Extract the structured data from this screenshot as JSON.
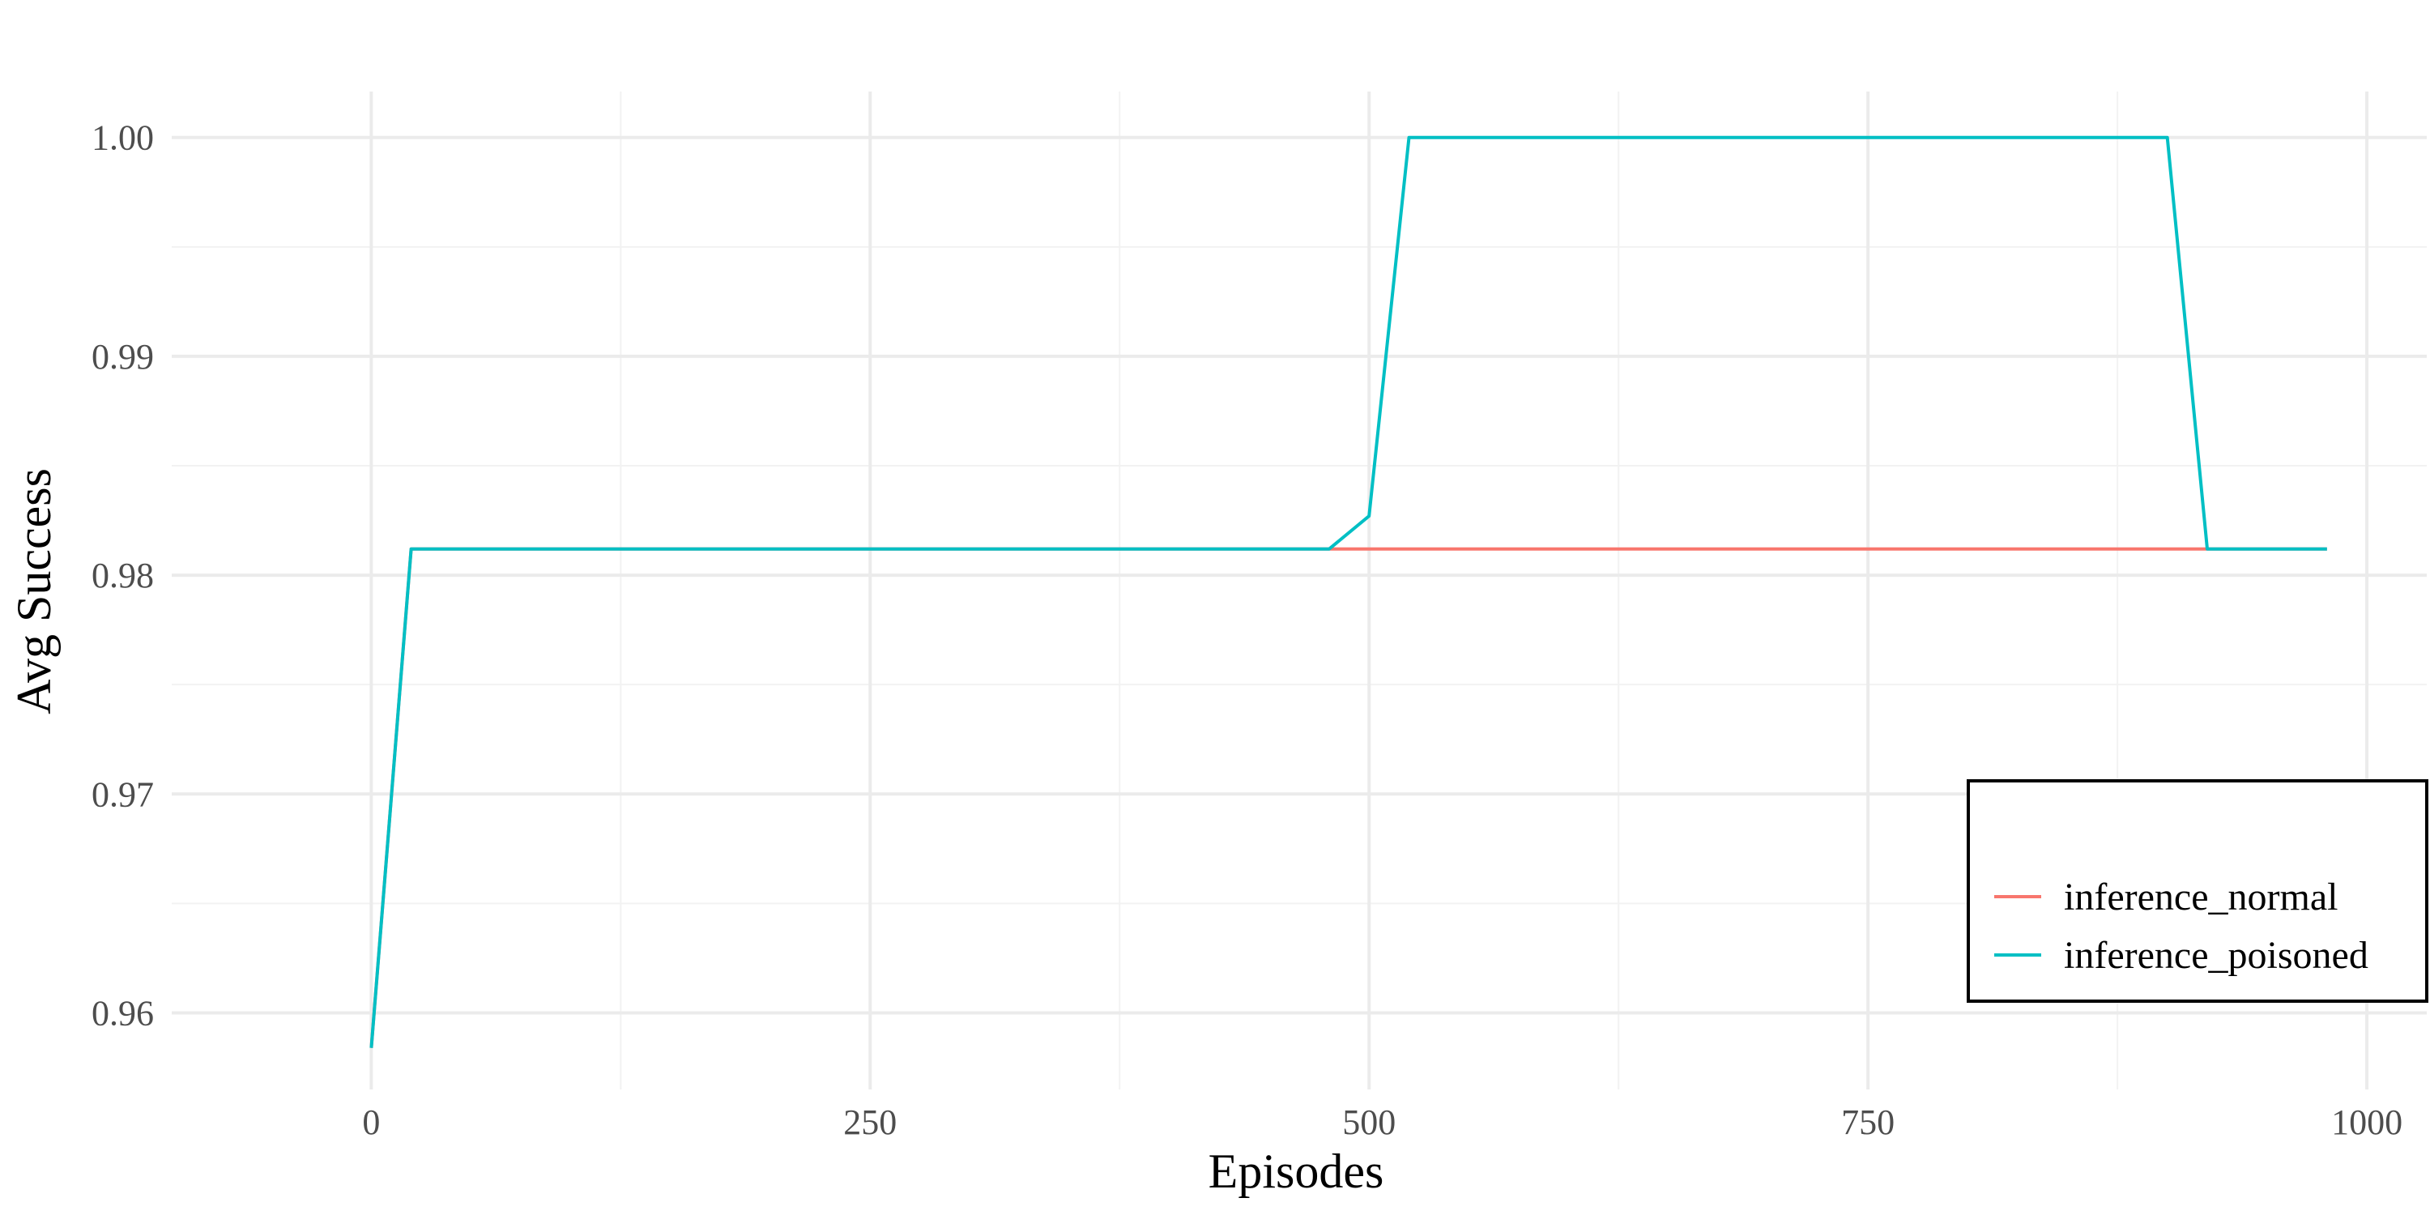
{
  "chart_data": {
    "type": "line",
    "title": "",
    "xlabel": "Episodes",
    "ylabel": "Avg Success",
    "xlim": [
      -100,
      1030
    ],
    "ylim": [
      0.9565,
      1.0021
    ],
    "x_ticks": [
      0,
      250,
      500,
      750,
      1000
    ],
    "x_tick_labels": [
      "0",
      "250",
      "500",
      "750",
      "1000"
    ],
    "x_minor_ticks": [
      125,
      375,
      625,
      875
    ],
    "y_ticks": [
      0.96,
      0.97,
      0.98,
      0.99,
      1.0
    ],
    "y_tick_labels": [
      "0.96",
      "0.97",
      "0.98",
      "0.99",
      "1.00"
    ],
    "y_minor_ticks": [
      0.965,
      0.975,
      0.985,
      0.995
    ],
    "grid": true,
    "legend_position": "bottom-right",
    "series": [
      {
        "name": "inference_normal",
        "color": "#F8766D",
        "x": [
          0,
          20,
          40,
          60,
          80,
          100,
          120,
          140,
          160,
          180,
          200,
          220,
          240,
          260,
          280,
          300,
          320,
          340,
          360,
          380,
          400,
          420,
          440,
          460,
          480,
          500,
          520,
          540,
          560,
          580,
          600,
          620,
          640,
          660,
          680,
          700,
          720,
          740,
          760,
          780,
          800,
          820,
          840,
          860,
          880,
          900,
          920,
          940,
          960,
          980
        ],
        "y": [
          0.9584,
          0.9812,
          0.9812,
          0.9812,
          0.9812,
          0.9812,
          0.9812,
          0.9812,
          0.9812,
          0.9812,
          0.9812,
          0.9812,
          0.9812,
          0.9812,
          0.9812,
          0.9812,
          0.9812,
          0.9812,
          0.9812,
          0.9812,
          0.9812,
          0.9812,
          0.9812,
          0.9812,
          0.9812,
          0.9812,
          0.9812,
          0.9812,
          0.9812,
          0.9812,
          0.9812,
          0.9812,
          0.9812,
          0.9812,
          0.9812,
          0.9812,
          0.9812,
          0.9812,
          0.9812,
          0.9812,
          0.9812,
          0.9812,
          0.9812,
          0.9812,
          0.9812,
          0.9812,
          0.9812,
          0.9812,
          0.9812,
          0.9812
        ]
      },
      {
        "name": "inference_poisoned",
        "color": "#00BFC4",
        "x": [
          0,
          20,
          40,
          60,
          80,
          100,
          120,
          140,
          160,
          180,
          200,
          220,
          240,
          260,
          280,
          300,
          320,
          340,
          360,
          380,
          400,
          420,
          440,
          460,
          480,
          500,
          520,
          540,
          560,
          580,
          600,
          620,
          640,
          660,
          680,
          700,
          720,
          740,
          760,
          780,
          800,
          820,
          840,
          860,
          880,
          900,
          920,
          940,
          960,
          980
        ],
        "y": [
          0.9584,
          0.9812,
          0.9812,
          0.9812,
          0.9812,
          0.9812,
          0.9812,
          0.9812,
          0.9812,
          0.9812,
          0.9812,
          0.9812,
          0.9812,
          0.9812,
          0.9812,
          0.9812,
          0.9812,
          0.9812,
          0.9812,
          0.9812,
          0.9812,
          0.9812,
          0.9812,
          0.9812,
          0.9812,
          0.9827,
          1.0,
          1.0,
          1.0,
          1.0,
          1.0,
          1.0,
          1.0,
          1.0,
          1.0,
          1.0,
          1.0,
          1.0,
          1.0,
          1.0,
          1.0,
          1.0,
          1.0,
          1.0,
          1.0,
          1.0,
          0.9812,
          0.9812,
          0.9812,
          0.9812
        ]
      }
    ]
  }
}
